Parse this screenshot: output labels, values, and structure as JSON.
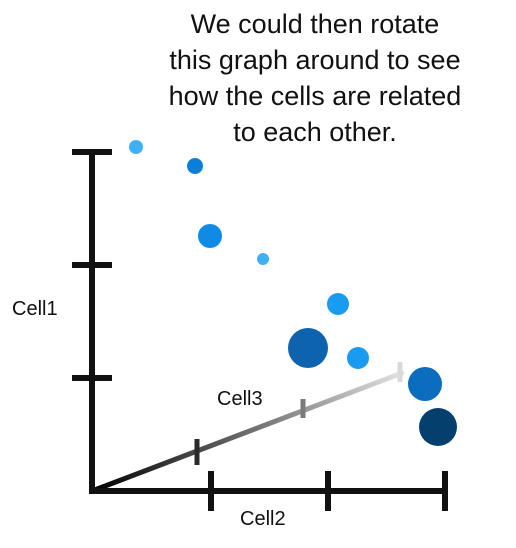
{
  "caption": {
    "lines": [
      "We could then rotate",
      "this graph around to see",
      "how the cells are related",
      "to each other."
    ]
  },
  "axes": {
    "y_label": "Cell1",
    "x_label": "Cell2",
    "z_label": "Cell3"
  },
  "colors": {
    "axis": "#111111",
    "light_blue": "#2aa4f4",
    "mid_blue": "#0a7ed8",
    "dark_blue": "#0d5fa6",
    "navy": "#053f6e"
  }
}
